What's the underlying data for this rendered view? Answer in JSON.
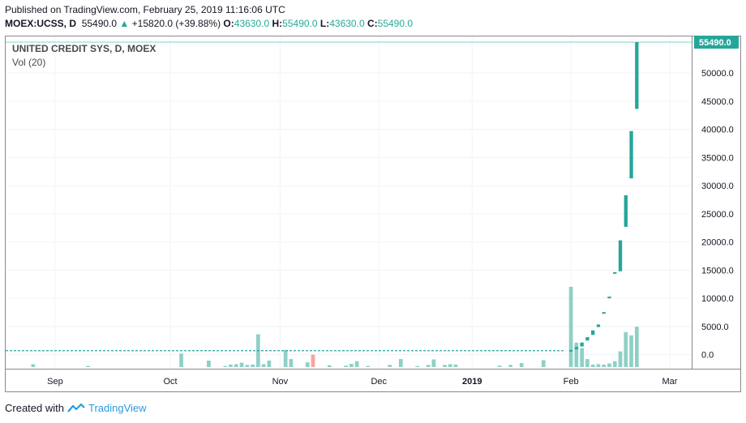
{
  "header": {
    "published": "Published on TradingView.com, February 25, 2019 11:16:06 UTC",
    "symbol": "MOEX:UCSS, D",
    "last": "55490.0",
    "change": "+15820.0 (+39.88%)",
    "o_label": "O:",
    "o_value": "43630.0",
    "h_label": "H:",
    "h_value": "55490.0",
    "l_label": "L:",
    "l_value": "43630.0",
    "c_label": "C:",
    "c_value": "55490.0"
  },
  "legend": {
    "title": "UNITED CREDIT SYS, D, MOEX",
    "volume": "Vol (20)"
  },
  "footer": {
    "created_with": "Created with",
    "brand": "TradingView"
  },
  "colors": {
    "up": "#26a69a",
    "down": "#ef5350",
    "vol_up": "#8fd0c6",
    "vol_down": "#f4a6a4",
    "grid": "#f0f3fa",
    "price_line": "#7fd5d0"
  },
  "chart_data": {
    "type": "candlestick",
    "title": "UNITED CREDIT SYS, D, MOEX",
    "price_label": "55490.0",
    "y_ticks": [
      "0.0",
      "5000.0",
      "10000.0",
      "15000.0",
      "20000.0",
      "25000.0",
      "30000.0",
      "35000.0",
      "40000.0",
      "45000.0",
      "50000.0"
    ],
    "ylim": [
      -2500,
      56500
    ],
    "x_ticks": [
      {
        "label": "Sep",
        "pos": 5
      },
      {
        "label": "Oct",
        "pos": 26
      },
      {
        "label": "Nov",
        "pos": 46
      },
      {
        "label": "Dec",
        "pos": 64
      },
      {
        "label": "2019",
        "pos": 81
      },
      {
        "label": "Feb",
        "pos": 99
      },
      {
        "label": "Mar",
        "pos": 117
      }
    ],
    "x_range": [
      -4,
      121
    ],
    "candles": [
      {
        "x": 99,
        "o": 560,
        "c": 830
      },
      {
        "x": 100,
        "o": 950,
        "c": 1350
      },
      {
        "x": 101,
        "o": 1450,
        "c": 2150
      },
      {
        "x": 102,
        "o": 2500,
        "c": 3100
      },
      {
        "x": 103,
        "o": 3500,
        "c": 4300
      },
      {
        "x": 104,
        "o": 4900,
        "c": 5350
      },
      {
        "x": 105,
        "o": 7400,
        "c": 7550
      },
      {
        "x": 106,
        "o": 10200,
        "c": 10300
      },
      {
        "x": 107,
        "o": 14500,
        "c": 14650
      },
      {
        "x": 108,
        "o": 14800,
        "c": 20300
      },
      {
        "x": 109,
        "o": 22700,
        "c": 28300
      },
      {
        "x": 110,
        "o": 31300,
        "c": 39700
      },
      {
        "x": 111,
        "o": 43630,
        "c": 55490
      }
    ],
    "flat_price": 700,
    "flat_range": [
      -4,
      98
    ],
    "volume": [
      {
        "x": 1,
        "v": 0.08,
        "dir": "up"
      },
      {
        "x": 11,
        "v": 0.03,
        "dir": "up"
      },
      {
        "x": 28,
        "v": 0.37,
        "dir": "up"
      },
      {
        "x": 33,
        "v": 0.18,
        "dir": "up"
      },
      {
        "x": 36,
        "v": 0.03,
        "dir": "up"
      },
      {
        "x": 37,
        "v": 0.07,
        "dir": "up"
      },
      {
        "x": 38,
        "v": 0.08,
        "dir": "up"
      },
      {
        "x": 39,
        "v": 0.12,
        "dir": "up"
      },
      {
        "x": 40,
        "v": 0.06,
        "dir": "up"
      },
      {
        "x": 41,
        "v": 0.07,
        "dir": "up"
      },
      {
        "x": 42,
        "v": 0.9,
        "dir": "up"
      },
      {
        "x": 43,
        "v": 0.08,
        "dir": "up"
      },
      {
        "x": 44,
        "v": 0.18,
        "dir": "up"
      },
      {
        "x": 47,
        "v": 0.47,
        "dir": "up"
      },
      {
        "x": 48,
        "v": 0.22,
        "dir": "up"
      },
      {
        "x": 51,
        "v": 0.13,
        "dir": "up"
      },
      {
        "x": 52,
        "v": 0.34,
        "dir": "down"
      },
      {
        "x": 55,
        "v": 0.05,
        "dir": "up"
      },
      {
        "x": 58,
        "v": 0.04,
        "dir": "up"
      },
      {
        "x": 59,
        "v": 0.09,
        "dir": "up"
      },
      {
        "x": 60,
        "v": 0.16,
        "dir": "up"
      },
      {
        "x": 62,
        "v": 0.03,
        "dir": "up"
      },
      {
        "x": 66,
        "v": 0.06,
        "dir": "up"
      },
      {
        "x": 68,
        "v": 0.22,
        "dir": "up"
      },
      {
        "x": 71,
        "v": 0.03,
        "dir": "up"
      },
      {
        "x": 73,
        "v": 0.06,
        "dir": "up"
      },
      {
        "x": 74,
        "v": 0.21,
        "dir": "up"
      },
      {
        "x": 76,
        "v": 0.06,
        "dir": "up"
      },
      {
        "x": 77,
        "v": 0.08,
        "dir": "up"
      },
      {
        "x": 78,
        "v": 0.07,
        "dir": "up"
      },
      {
        "x": 86,
        "v": 0.04,
        "dir": "up"
      },
      {
        "x": 88,
        "v": 0.06,
        "dir": "up"
      },
      {
        "x": 90,
        "v": 0.11,
        "dir": "up"
      },
      {
        "x": 94,
        "v": 0.19,
        "dir": "up"
      },
      {
        "x": 99,
        "v": 2.2,
        "dir": "up"
      },
      {
        "x": 100,
        "v": 0.67,
        "dir": "up"
      },
      {
        "x": 101,
        "v": 0.52,
        "dir": "up"
      },
      {
        "x": 102,
        "v": 0.22,
        "dir": "up"
      },
      {
        "x": 103,
        "v": 0.07,
        "dir": "up"
      },
      {
        "x": 104,
        "v": 0.08,
        "dir": "up"
      },
      {
        "x": 105,
        "v": 0.07,
        "dir": "up"
      },
      {
        "x": 106,
        "v": 0.1,
        "dir": "up"
      },
      {
        "x": 107,
        "v": 0.16,
        "dir": "up"
      },
      {
        "x": 108,
        "v": 0.43,
        "dir": "up"
      },
      {
        "x": 109,
        "v": 0.96,
        "dir": "up"
      },
      {
        "x": 110,
        "v": 0.87,
        "dir": "up"
      },
      {
        "x": 111,
        "v": 1.11,
        "dir": "up"
      }
    ],
    "grid": true
  }
}
